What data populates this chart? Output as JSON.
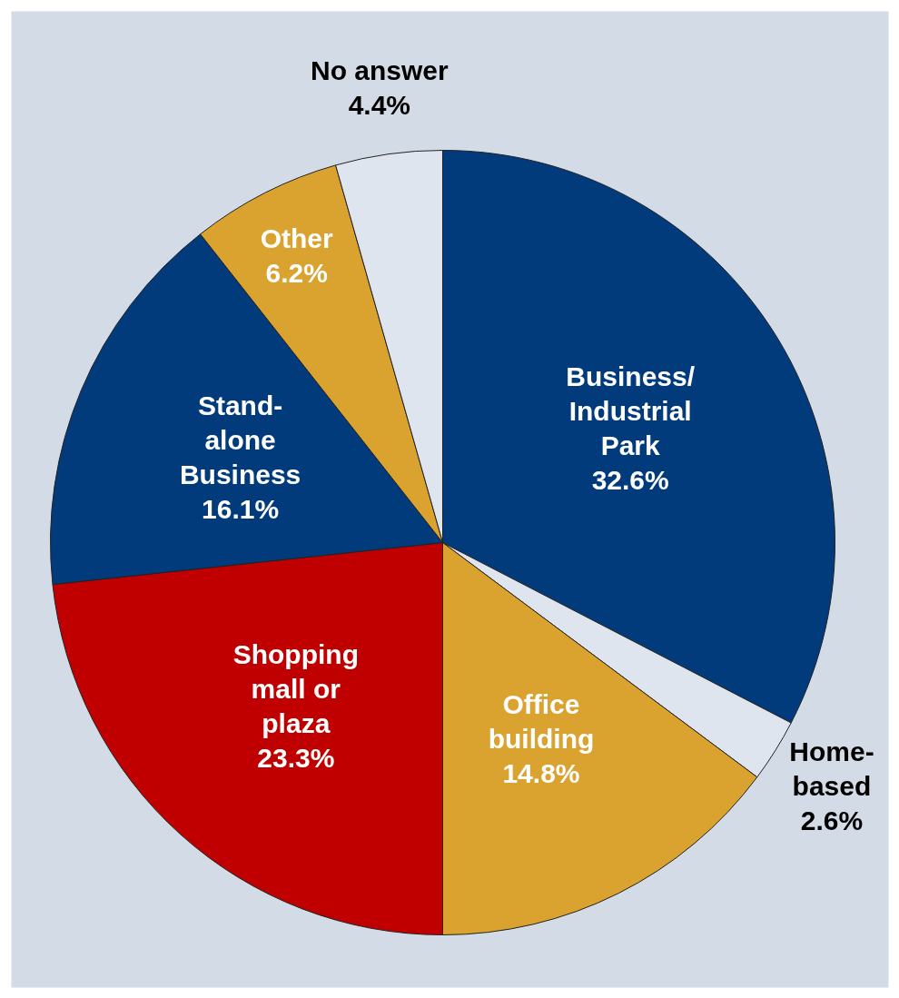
{
  "chart_data": {
    "type": "pie",
    "categories": [
      "Business/\nIndustrial\nPark",
      "Home-\nbased",
      "Office\nbuilding",
      "Shopping\nmall or\nplaza",
      "Stand-\nalone\nBusiness",
      "Other",
      "No answer"
    ],
    "values": [
      32.6,
      2.6,
      14.8,
      23.3,
      16.1,
      6.2,
      4.4
    ],
    "colors": [
      "#013b7c",
      "#dfe5ee",
      "#daa22e",
      "#c00000",
      "#013b7c",
      "#daa22e",
      "#dfe5ee"
    ],
    "value_labels": [
      "32.6%",
      "2.6%",
      "14.8%",
      "23.3%",
      "16.1%",
      "6.2%",
      "4.4%"
    ]
  }
}
